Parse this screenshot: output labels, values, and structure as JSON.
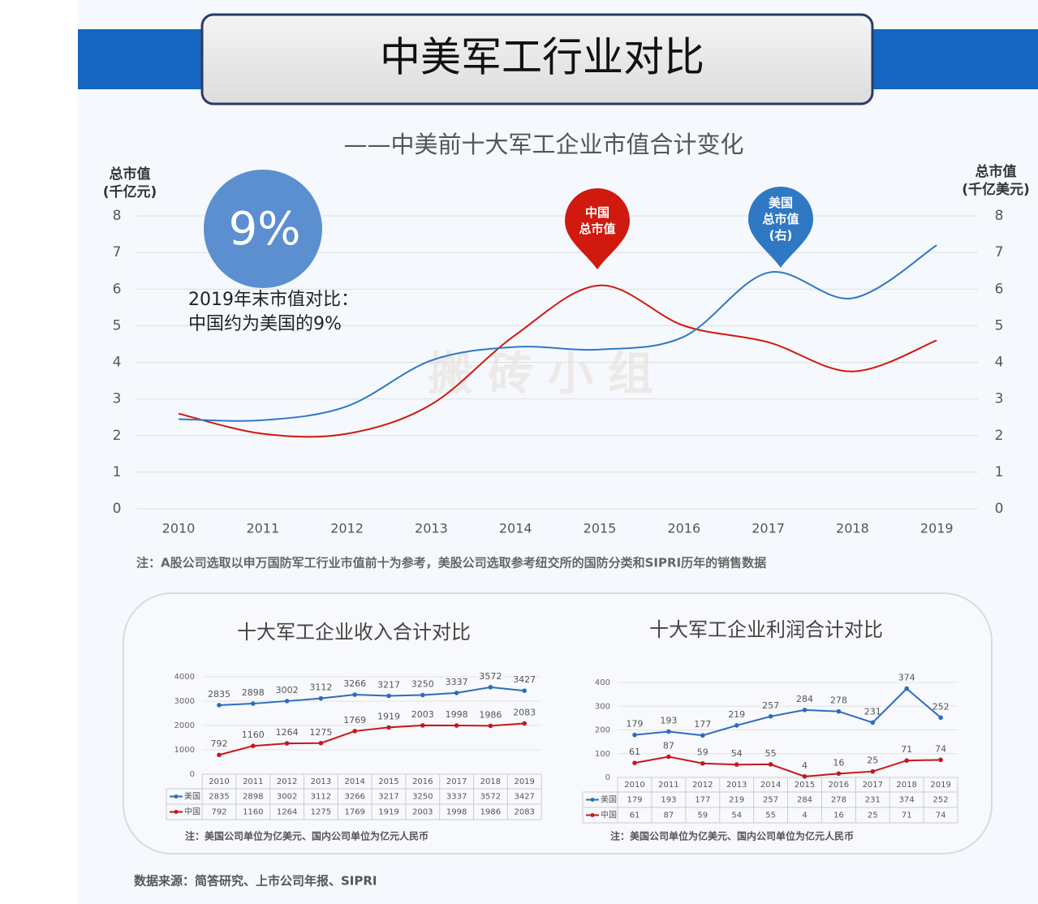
{
  "header": {
    "title": "中美军工行业对比"
  },
  "chart_data": [
    {
      "type": "line",
      "title": "——中美前十大军工企业市值合计变化",
      "ylabel": "总市值\n(千亿元)",
      "y2label": "总市值\n(千亿美元)",
      "categories": [
        "2010",
        "2011",
        "2012",
        "2013",
        "2014",
        "2015",
        "2016",
        "2017",
        "2018",
        "2019"
      ],
      "series": [
        {
          "name": "中国\n总市值",
          "color": "#d0190f",
          "values": [
            2.6,
            2.05,
            2.05,
            2.85,
            4.75,
            6.1,
            5.0,
            4.55,
            3.75,
            4.6
          ]
        },
        {
          "name": "美国\n总市值\n(右)",
          "color": "#2f78c4",
          "axis": "y2",
          "values": [
            2.45,
            2.42,
            2.8,
            4.05,
            4.42,
            4.35,
            4.7,
            6.45,
            5.75,
            7.2
          ]
        }
      ],
      "ylim": [
        0,
        8
      ],
      "yticks": [
        0,
        1,
        2,
        3,
        4,
        5,
        6,
        7,
        8
      ],
      "y2lim": [
        0,
        8
      ],
      "y2ticks": [
        0,
        1,
        2,
        3,
        4,
        5,
        6,
        7,
        8
      ],
      "grid": true,
      "highlight": "9%",
      "annotation": "2019年末市值对比：\n中国约为美国的9%",
      "watermark": "搬砖小组",
      "note": "注：A股公司选取以申万国防军工行业市值前十为参考，美股公司选取参考纽交所的国防分类和SIPRI历年的销售数据"
    },
    {
      "type": "line",
      "title": "十大军工企业收入合计对比",
      "categories": [
        "2010",
        "2011",
        "2012",
        "2013",
        "2014",
        "2015",
        "2016",
        "2017",
        "2018",
        "2019"
      ],
      "series": [
        {
          "name": "美国",
          "color": "#2e6bbd",
          "values": [
            2835,
            2898,
            3002,
            3112,
            3266,
            3217,
            3250,
            3337,
            3572,
            3427
          ]
        },
        {
          "name": "中国",
          "color": "#c8161d",
          "values": [
            792,
            1160,
            1264,
            1275,
            1769,
            1919,
            2003,
            1998,
            1986,
            2083
          ]
        }
      ],
      "ylim": [
        0,
        4000
      ],
      "yticks": [
        0,
        1000,
        2000,
        3000,
        4000
      ],
      "grid": true,
      "note": "注：美国公司单位为亿美元、国内公司单位为亿元人民币"
    },
    {
      "type": "line",
      "title": "十大军工企业利润合计对比",
      "categories": [
        "2010",
        "2011",
        "2012",
        "2013",
        "2014",
        "2015",
        "2016",
        "2017",
        "2018",
        "2019"
      ],
      "series": [
        {
          "name": "美国",
          "color": "#2e6bbd",
          "values": [
            179,
            193,
            177,
            219,
            257,
            284,
            278,
            231,
            374,
            252
          ]
        },
        {
          "name": "中国",
          "color": "#c8161d",
          "values": [
            61,
            87,
            59,
            54,
            55,
            4,
            16,
            25,
            71,
            74
          ]
        }
      ],
      "ylim": [
        0,
        400
      ],
      "yticks": [
        0,
        100,
        200,
        300,
        400
      ],
      "grid": true,
      "note": "注：美国公司单位为亿美元、国内公司单位为亿元人民币"
    }
  ],
  "source": "数据来源：简答研究、上市公司年报、SIPRI"
}
